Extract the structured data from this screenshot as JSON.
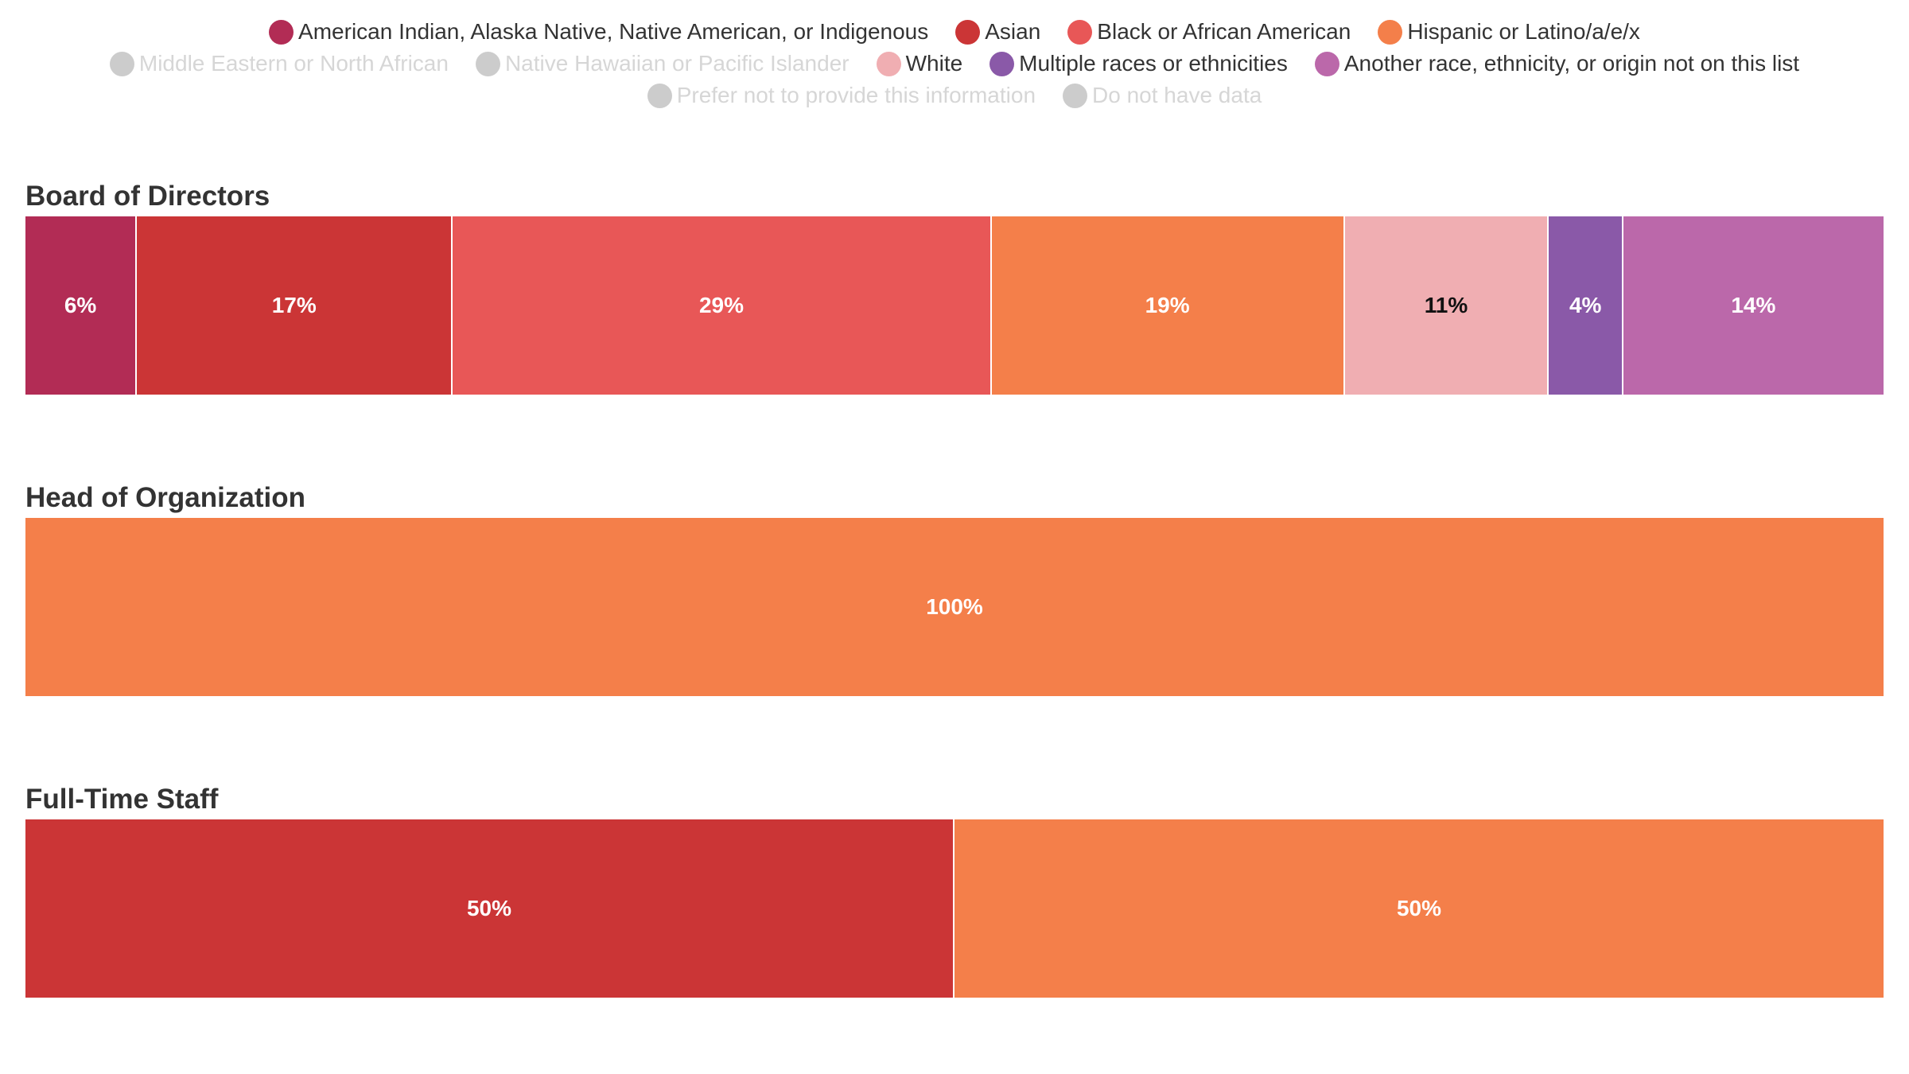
{
  "chart_data": {
    "type": "bar",
    "orientation": "horizontal-stacked-100",
    "legend": [
      {
        "name": "American Indian, Alaska Native, Native American, or Indigenous",
        "color": "#b22c55",
        "active": true
      },
      {
        "name": "Asian",
        "color": "#cb3536",
        "active": true
      },
      {
        "name": "Black or African American",
        "color": "#e85757",
        "active": true
      },
      {
        "name": "Hispanic or Latino/a/e/x",
        "color": "#f47f4a",
        "active": true
      },
      {
        "name": "Middle Eastern or North African",
        "color": "#cccccc",
        "active": false
      },
      {
        "name": "Native Hawaiian or Pacific Islander",
        "color": "#cccccc",
        "active": false
      },
      {
        "name": "White",
        "color": "#f0aeb2",
        "active": true
      },
      {
        "name": "Multiple races or ethnicities",
        "color": "#8a59a8",
        "active": true
      },
      {
        "name": "Another race, ethnicity, or origin not on this list",
        "color": "#bb68aa",
        "active": true
      },
      {
        "name": "Prefer not to provide this information",
        "color": "#cccccc",
        "active": false
      },
      {
        "name": "Do not have data",
        "color": "#cccccc",
        "active": false
      }
    ],
    "legend_rows": [
      [
        0,
        1,
        2,
        3
      ],
      [
        4,
        5,
        6,
        7,
        8
      ],
      [
        9,
        10
      ]
    ],
    "groups": [
      {
        "title": "Board of Directors",
        "segments": [
          {
            "category": "American Indian, Alaska Native, Native American, or Indigenous",
            "value": 6,
            "label": "6%",
            "color": "#b22c55",
            "label_color": "#ffffff"
          },
          {
            "category": "Asian",
            "value": 17,
            "label": "17%",
            "color": "#cb3536",
            "label_color": "#ffffff"
          },
          {
            "category": "Black or African American",
            "value": 29,
            "label": "29%",
            "color": "#e85757",
            "label_color": "#ffffff"
          },
          {
            "category": "Hispanic or Latino/a/e/x",
            "value": 19,
            "label": "19%",
            "color": "#f47f4a",
            "label_color": "#ffffff"
          },
          {
            "category": "White",
            "value": 11,
            "label": "11%",
            "color": "#f0aeb2",
            "label_color": "#111111"
          },
          {
            "category": "Multiple races or ethnicities",
            "value": 4,
            "label": "4%",
            "color": "#8a59a8",
            "label_color": "#ffffff"
          },
          {
            "category": "Another race, ethnicity, or origin not on this list",
            "value": 14,
            "label": "14%",
            "color": "#bb68aa",
            "label_color": "#ffffff"
          }
        ]
      },
      {
        "title": "Head of Organization",
        "segments": [
          {
            "category": "Hispanic or Latino/a/e/x",
            "value": 100,
            "label": "100%",
            "color": "#f47f4a",
            "label_color": "#ffffff"
          }
        ]
      },
      {
        "title": "Full-Time Staff",
        "segments": [
          {
            "category": "Asian",
            "value": 50,
            "label": "50%",
            "color": "#cb3536",
            "label_color": "#ffffff"
          },
          {
            "category": "Hispanic or Latino/a/e/x",
            "value": 50,
            "label": "50%",
            "color": "#f47f4a",
            "label_color": "#ffffff"
          }
        ]
      }
    ]
  }
}
